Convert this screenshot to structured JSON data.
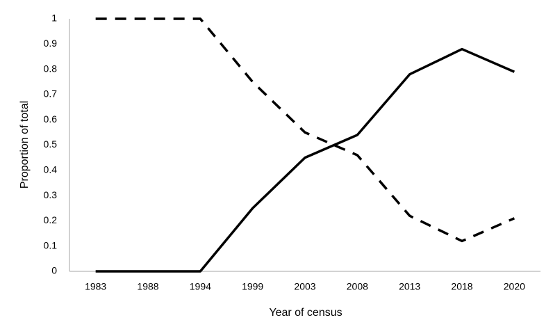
{
  "chart_data": {
    "type": "line",
    "x_label": "Year of census",
    "y_label": "Proportion of total",
    "categories": [
      "1983",
      "1988",
      "1994",
      "1999",
      "2003",
      "2008",
      "2013",
      "2018",
      "2020"
    ],
    "series": [
      {
        "color": "#000000",
        "line_style": "solid",
        "values": [
          0,
          0,
          0,
          0.25,
          0.45,
          0.54,
          0.78,
          0.88,
          0.79
        ]
      },
      {
        "color": "#000000",
        "line_style": "dashed",
        "values": [
          1,
          1,
          1,
          0.75,
          0.55,
          0.46,
          0.22,
          0.12,
          0.21
        ]
      }
    ],
    "ylim": [
      0,
      1
    ],
    "yticks": [
      0,
      0.1,
      0.2,
      0.3,
      0.4,
      0.5,
      0.6,
      0.7,
      0.8,
      0.9,
      1
    ],
    "grid": false
  }
}
